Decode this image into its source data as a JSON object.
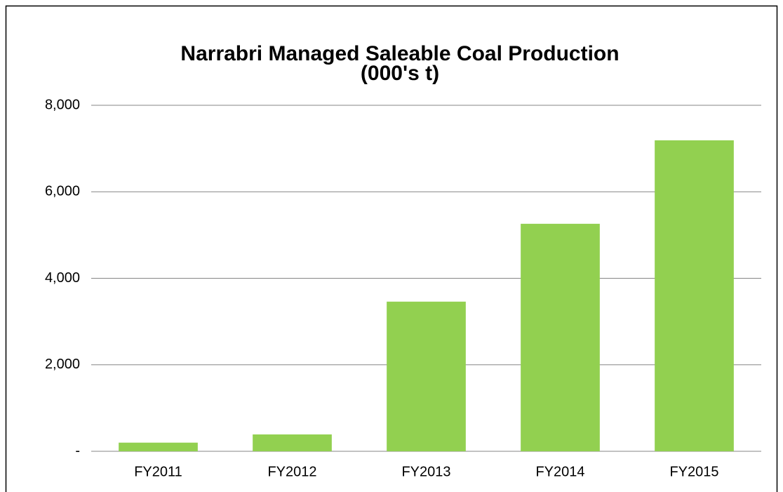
{
  "chart_data": {
    "type": "bar",
    "title": "Narrabri Managed Saleable Coal Production",
    "subtitle": "(000's t)",
    "categories": [
      "FY2011",
      "FY2012",
      "FY2013",
      "FY2014",
      "FY2015"
    ],
    "values": [
      200,
      390,
      3460,
      5260,
      7190
    ],
    "color": "#92d050",
    "ylim": [
      0,
      8000
    ],
    "yticks": [
      {
        "value": 0,
        "label": "-"
      },
      {
        "value": 2000,
        "label": "2,000"
      },
      {
        "value": 4000,
        "label": "4,000"
      },
      {
        "value": 6000,
        "label": "6,000"
      },
      {
        "value": 8000,
        "label": "8,000"
      }
    ],
    "grid": true
  }
}
